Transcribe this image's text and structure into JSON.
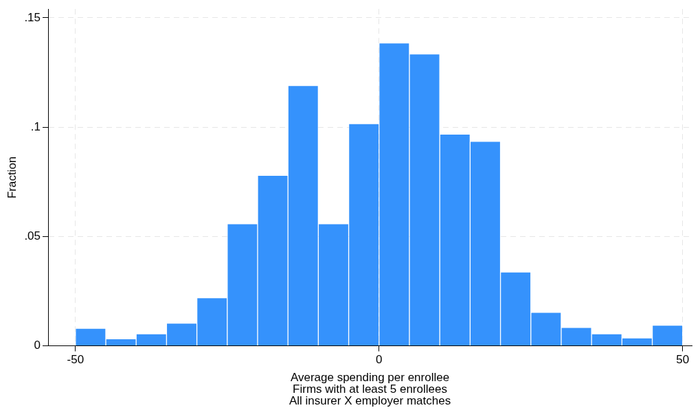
{
  "chart_data": {
    "type": "histogram",
    "xlabel": "Average spending per enrollee\nFirms with at least 5 enrollees\nAll insurer X employer matches",
    "ylabel": "Fraction",
    "bins": [
      -50,
      -45,
      -40,
      -35,
      -30,
      -25,
      -20,
      -15,
      -10,
      -5,
      0,
      5,
      10,
      15,
      20,
      25,
      30,
      35,
      40,
      45,
      50
    ],
    "values": [
      0.008,
      0.0032,
      0.0055,
      0.0104,
      0.022,
      0.0558,
      0.078,
      0.119,
      0.0558,
      0.1016,
      0.1385,
      0.1335,
      0.0968,
      0.0935,
      0.0338,
      0.0153,
      0.0084,
      0.0055,
      0.0036,
      0.0094
    ],
    "color": "#3592fc",
    "xlim": [
      -54.5,
      51.5
    ],
    "xticks": [
      -50,
      0,
      50
    ],
    "ylim": [
      0,
      0.154
    ],
    "yticks": [
      0,
      {
        "value": 0.05,
        "label": ".05"
      },
      {
        "value": 0.1,
        "label": ".1"
      },
      {
        "value": 0.15,
        "label": ".15"
      }
    ],
    "grid": true
  }
}
